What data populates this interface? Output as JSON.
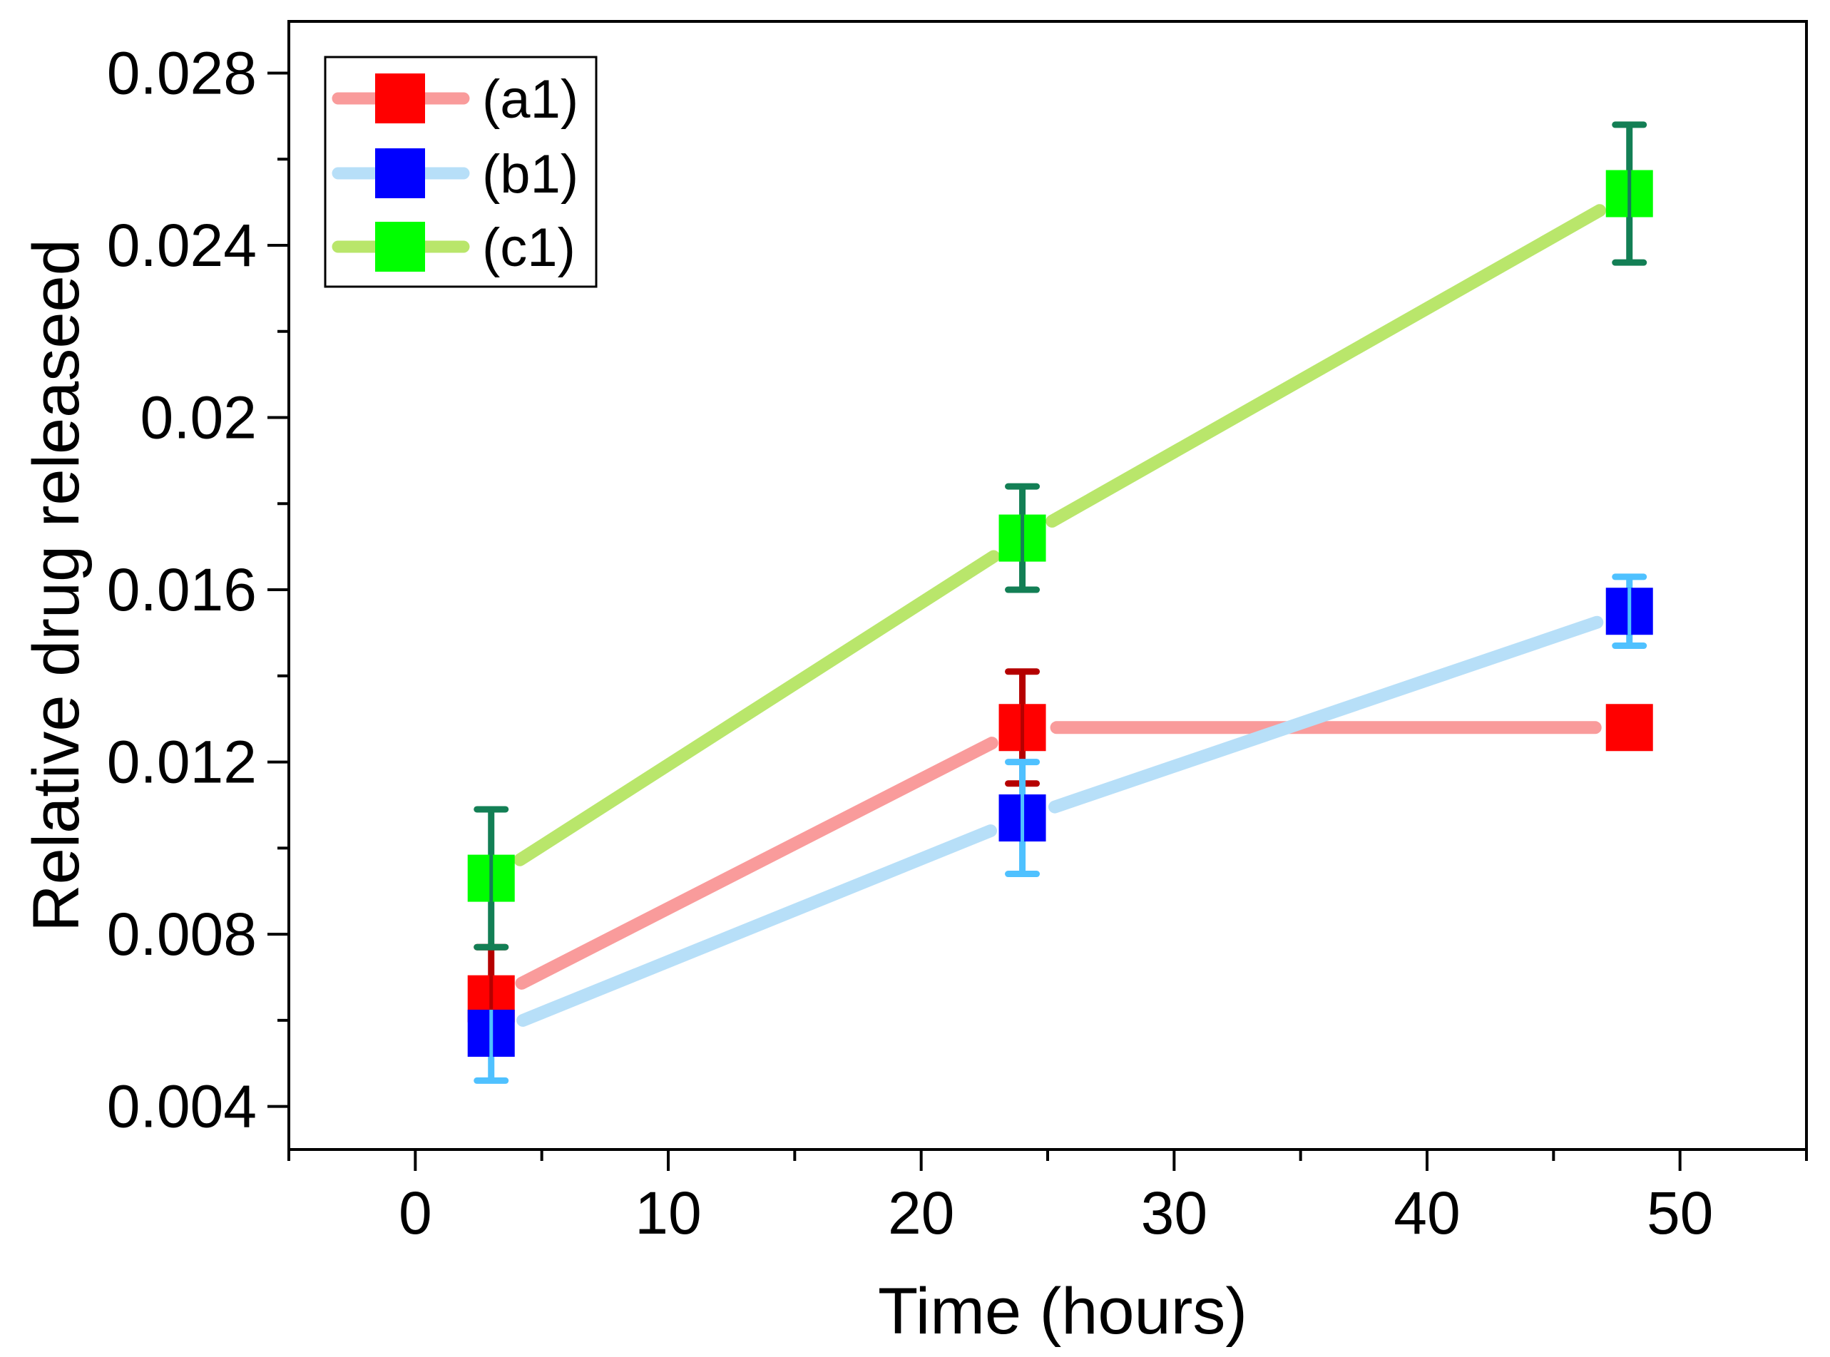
{
  "chart_data": {
    "type": "line",
    "title": "",
    "xlabel": "Time (hours)",
    "ylabel": "Relative drug releaseed",
    "xlim": [
      -5,
      55
    ],
    "ylim": [
      0.003,
      0.0292
    ],
    "x_ticks": [
      0,
      10,
      20,
      30,
      40,
      50
    ],
    "y_ticks": [
      0.004,
      0.008,
      0.012,
      0.016,
      0.02,
      0.024,
      0.028
    ],
    "x_tick_labels": [
      "0",
      "10",
      "20",
      "30",
      "40",
      "50"
    ],
    "y_tick_labels": [
      "0.004",
      "0.008",
      "0.012",
      "0.016",
      "0.02",
      "0.024",
      "0.028"
    ],
    "grid": false,
    "legend_position": "top-left",
    "x": [
      3,
      24,
      48
    ],
    "series": [
      {
        "name": "(a1)",
        "values": [
          0.0065,
          0.0128,
          0.0128
        ],
        "errors": [
          0.0012,
          0.0013,
          0.0
        ],
        "line_color": "#f99b9b",
        "marker_color": "#ff0000",
        "error_color": "#b50000"
      },
      {
        "name": "(b1)",
        "values": [
          0.0057,
          0.0107,
          0.0155
        ],
        "errors": [
          0.0011,
          0.0013,
          0.0008
        ],
        "line_color": "#b7dff8",
        "marker_color": "#0000ff",
        "error_color": "#4fc1ff"
      },
      {
        "name": "(c1)",
        "values": [
          0.0093,
          0.0172,
          0.0252
        ],
        "errors": [
          0.0016,
          0.0012,
          0.0016
        ],
        "line_color": "#b9e66b",
        "marker_color": "#00ff00",
        "error_color": "#137f55"
      }
    ]
  }
}
